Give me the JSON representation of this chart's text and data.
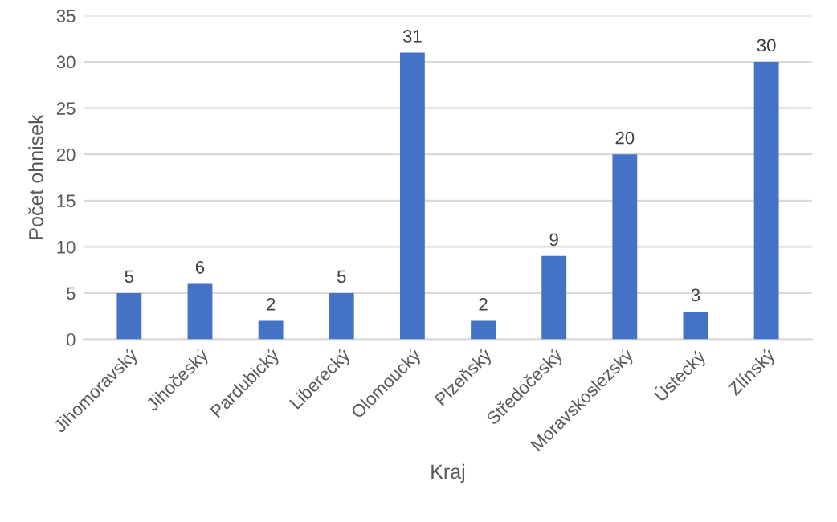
{
  "chart_data": {
    "type": "bar",
    "xlabel": "Kraj",
    "ylabel": "Počet ohnisek",
    "categories": [
      "Jihomoravský",
      "Jihočeský",
      "Pardubický",
      "Liberecký",
      "Olomoucký",
      "Plzeňský",
      "Středočeský",
      "Moravskoslezský",
      "Ústecký",
      "Zlínský"
    ],
    "values": [
      5,
      6,
      2,
      5,
      31,
      2,
      9,
      20,
      3,
      30
    ],
    "color": "#4472c4",
    "ylim": [
      0,
      35
    ],
    "yticks": [
      0,
      5,
      10,
      15,
      20,
      25,
      30,
      35
    ],
    "grid": "y",
    "data_labels": true
  }
}
